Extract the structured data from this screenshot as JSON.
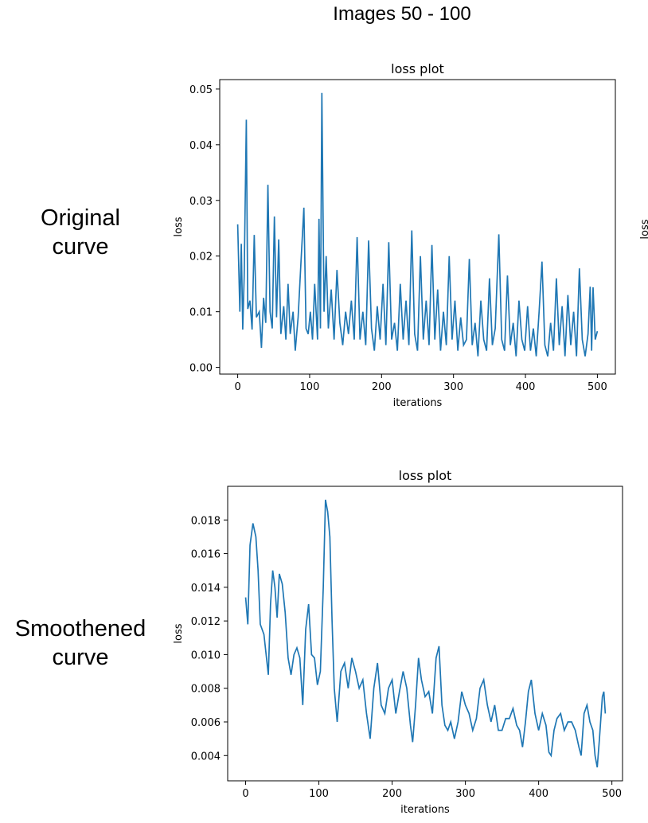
{
  "figure": {
    "title": "Images 50 - 100",
    "row_labels": [
      "Original\ncurve",
      "Smoothened\ncurve"
    ],
    "partial_ylabel": "loss"
  },
  "chart_data": [
    {
      "type": "line",
      "title": "loss plot",
      "x_label": "iterations",
      "y_label": "loss",
      "color": "#1f77b4",
      "xlim": [
        -25,
        525
      ],
      "xticks": [
        0,
        100,
        200,
        300,
        400,
        500
      ],
      "ylim": [
        -0.0012,
        0.0517
      ],
      "yticks": [
        {
          "value": 0,
          "label": "0.00"
        },
        0.01,
        0.02,
        0.03,
        0.04,
        0.05
      ],
      "x": [
        0,
        3,
        5,
        7,
        9,
        12,
        14,
        17,
        20,
        23,
        26,
        30,
        33,
        36,
        39,
        42,
        45,
        48,
        51,
        54,
        57,
        60,
        64,
        67,
        70,
        73,
        77,
        80,
        84,
        88,
        92,
        95,
        98,
        101,
        104,
        107,
        111,
        113,
        115,
        117,
        120,
        123,
        126,
        130,
        134,
        138,
        142,
        146,
        150,
        154,
        158,
        162,
        166,
        170,
        174,
        178,
        182,
        186,
        190,
        194,
        198,
        202,
        206,
        210,
        214,
        218,
        222,
        226,
        230,
        234,
        238,
        242,
        246,
        250,
        254,
        258,
        262,
        266,
        270,
        274,
        278,
        282,
        286,
        290,
        294,
        298,
        302,
        306,
        310,
        314,
        318,
        322,
        326,
        330,
        334,
        338,
        342,
        346,
        350,
        354,
        358,
        363,
        367,
        371,
        375,
        379,
        383,
        387,
        391,
        395,
        399,
        403,
        407,
        411,
        415,
        419,
        423,
        427,
        431,
        435,
        439,
        443,
        447,
        451,
        455,
        459,
        463,
        467,
        471,
        475,
        479,
        483,
        487,
        490,
        492,
        494,
        497,
        500
      ],
      "values": [
        0.0257,
        0.01,
        0.0222,
        0.0068,
        0.0163,
        0.0445,
        0.0105,
        0.012,
        0.0068,
        0.0238,
        0.009,
        0.01,
        0.0035,
        0.0125,
        0.008,
        0.0328,
        0.01,
        0.007,
        0.0271,
        0.009,
        0.023,
        0.006,
        0.011,
        0.005,
        0.015,
        0.006,
        0.01,
        0.003,
        0.009,
        0.019,
        0.0287,
        0.007,
        0.006,
        0.01,
        0.005,
        0.015,
        0.005,
        0.0267,
        0.007,
        0.0493,
        0.01,
        0.02,
        0.007,
        0.014,
        0.005,
        0.0175,
        0.008,
        0.004,
        0.01,
        0.006,
        0.012,
        0.005,
        0.0234,
        0.005,
        0.01,
        0.004,
        0.0228,
        0.007,
        0.003,
        0.011,
        0.005,
        0.015,
        0.004,
        0.0225,
        0.005,
        0.008,
        0.003,
        0.015,
        0.005,
        0.012,
        0.004,
        0.0246,
        0.006,
        0.003,
        0.02,
        0.005,
        0.012,
        0.004,
        0.022,
        0.005,
        0.014,
        0.003,
        0.01,
        0.004,
        0.02,
        0.005,
        0.012,
        0.003,
        0.009,
        0.004,
        0.005,
        0.0195,
        0.004,
        0.008,
        0.002,
        0.012,
        0.005,
        0.003,
        0.016,
        0.004,
        0.007,
        0.0239,
        0.005,
        0.003,
        0.0165,
        0.004,
        0.008,
        0.002,
        0.012,
        0.005,
        0.003,
        0.011,
        0.003,
        0.007,
        0.002,
        0.01,
        0.019,
        0.004,
        0.002,
        0.008,
        0.003,
        0.016,
        0.004,
        0.011,
        0.002,
        0.013,
        0.004,
        0.01,
        0.002,
        0.0178,
        0.005,
        0.002,
        0.006,
        0.0145,
        0.003,
        0.0144,
        0.005,
        0.0065
      ]
    },
    {
      "type": "line",
      "title": "loss plot",
      "x_label": "iterations",
      "y_label": "loss",
      "color": "#1f77b4",
      "xlim": [
        -24.5,
        514.5
      ],
      "xticks": [
        0,
        100,
        200,
        300,
        400,
        500
      ],
      "ylim": [
        0.0025,
        0.02
      ],
      "yticks": [
        0.004,
        0.006,
        0.008,
        {
          "value": 0.01,
          "label": "0.010"
        },
        0.012,
        0.014,
        0.016,
        0.018
      ],
      "x": [
        0,
        3,
        6,
        10,
        14,
        17,
        20,
        25,
        28,
        31,
        34,
        37,
        40,
        43,
        46,
        50,
        54,
        58,
        62,
        66,
        70,
        74,
        78,
        82,
        86,
        90,
        94,
        98,
        102,
        106,
        109,
        112,
        115,
        118,
        121,
        125,
        130,
        135,
        140,
        145,
        150,
        155,
        160,
        165,
        170,
        175,
        180,
        185,
        190,
        195,
        200,
        205,
        210,
        215,
        220,
        225,
        228,
        232,
        236,
        240,
        245,
        250,
        255,
        260,
        264,
        268,
        272,
        276,
        280,
        285,
        290,
        295,
        300,
        305,
        310,
        315,
        320,
        325,
        330,
        335,
        340,
        345,
        350,
        355,
        360,
        365,
        370,
        374,
        378,
        382,
        386,
        390,
        395,
        400,
        405,
        410,
        414,
        417,
        421,
        425,
        430,
        435,
        440,
        445,
        450,
        455,
        458,
        462,
        466,
        470,
        474,
        477,
        480,
        483,
        487,
        489,
        491
      ],
      "values": [
        0.0134,
        0.0118,
        0.0165,
        0.0178,
        0.017,
        0.015,
        0.0118,
        0.0112,
        0.01,
        0.0088,
        0.013,
        0.015,
        0.014,
        0.0122,
        0.0148,
        0.0142,
        0.0125,
        0.0098,
        0.0088,
        0.01,
        0.0104,
        0.0098,
        0.007,
        0.0115,
        0.013,
        0.01,
        0.0098,
        0.0082,
        0.009,
        0.014,
        0.0192,
        0.0185,
        0.017,
        0.012,
        0.008,
        0.006,
        0.009,
        0.0095,
        0.008,
        0.0098,
        0.009,
        0.008,
        0.0085,
        0.0065,
        0.005,
        0.008,
        0.0095,
        0.007,
        0.0065,
        0.008,
        0.0085,
        0.0065,
        0.0078,
        0.009,
        0.008,
        0.0058,
        0.0048,
        0.007,
        0.0098,
        0.0085,
        0.0075,
        0.0078,
        0.0065,
        0.0098,
        0.0105,
        0.007,
        0.0058,
        0.0055,
        0.006,
        0.005,
        0.006,
        0.0078,
        0.007,
        0.0065,
        0.0055,
        0.0062,
        0.008,
        0.0085,
        0.007,
        0.006,
        0.007,
        0.0055,
        0.0055,
        0.0062,
        0.0062,
        0.0068,
        0.0058,
        0.0055,
        0.0045,
        0.006,
        0.0078,
        0.0085,
        0.0065,
        0.0055,
        0.0065,
        0.0058,
        0.0042,
        0.004,
        0.0055,
        0.0062,
        0.0065,
        0.0055,
        0.006,
        0.006,
        0.0055,
        0.0045,
        0.004,
        0.0065,
        0.007,
        0.006,
        0.0055,
        0.004,
        0.0033,
        0.005,
        0.0075,
        0.0078,
        0.0065
      ]
    }
  ]
}
